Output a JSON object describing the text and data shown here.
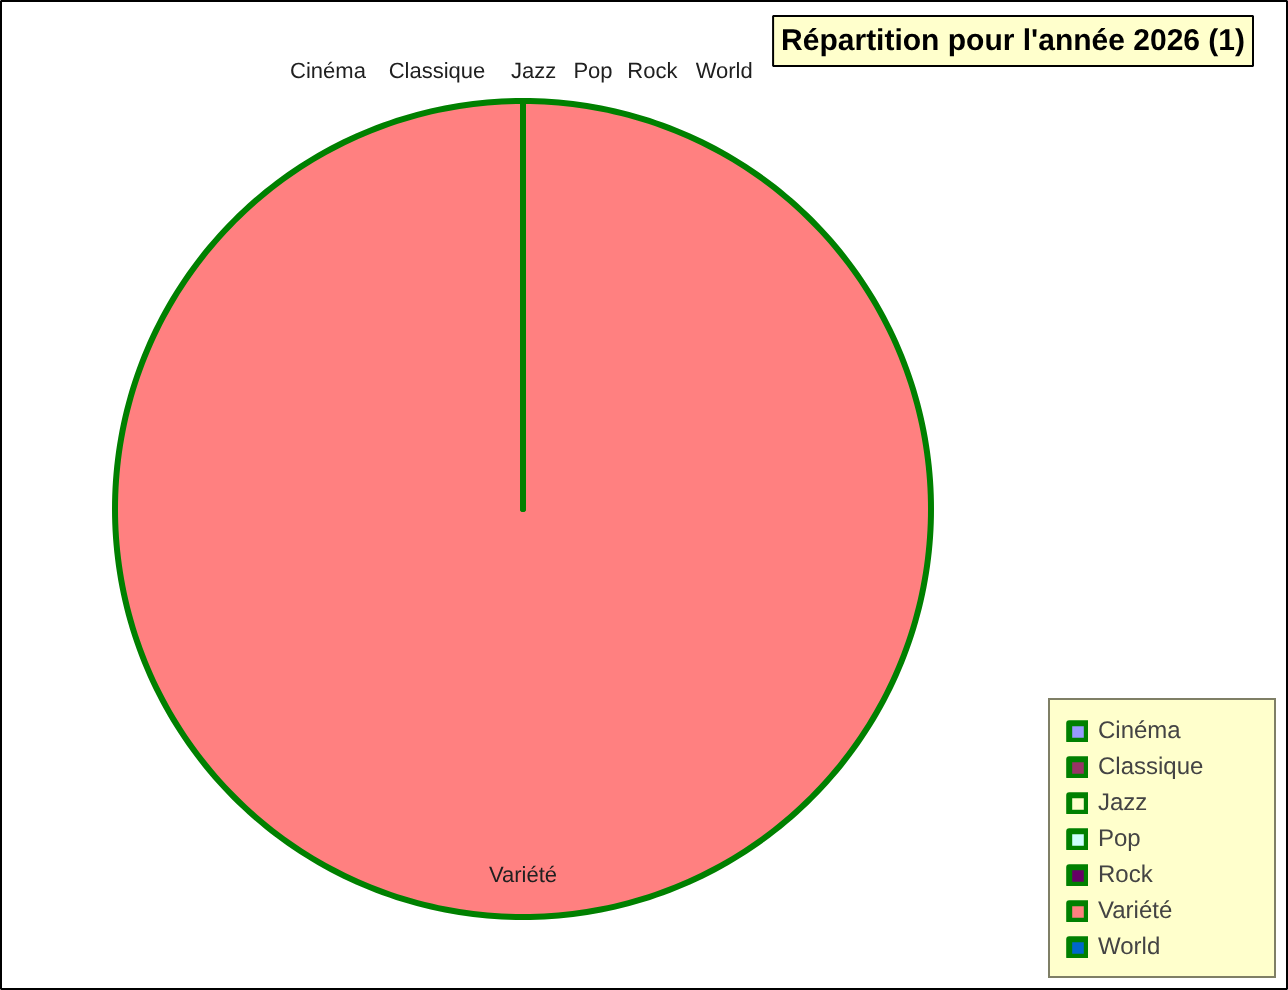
{
  "chart_data": {
    "type": "pie",
    "title": "Répartition pour l'année 2026 (1)",
    "categories": [
      "Cinéma",
      "Classique",
      "Jazz",
      "Pop",
      "Rock",
      "Variété",
      "World"
    ],
    "values": [
      0,
      0,
      0,
      0,
      0,
      100,
      0
    ],
    "colors": [
      "#9999ff",
      "#993366",
      "#ffffcc",
      "#ccffff",
      "#660066",
      "#ff8080",
      "#0066cc"
    ],
    "legend": "bottom right"
  }
}
